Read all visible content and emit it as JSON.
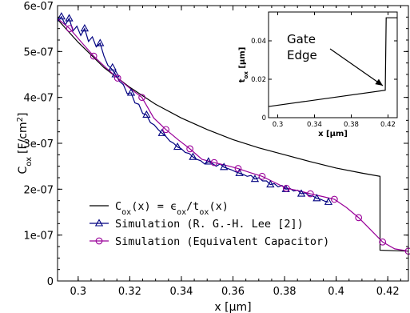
{
  "chart_data": [
    {
      "type": "line",
      "xlabel": "x",
      "xlabel_unit": "[μm]",
      "ylabel": "C",
      "ylabel_sub": "ox",
      "ylabel_unit": "[F/cm",
      "ylabel_unit_sup": "2",
      "ylabel_unit_end": "]",
      "xlim": [
        0.292,
        0.428
      ],
      "ylim": [
        0,
        6e-07
      ],
      "x_ticks": [
        0.3,
        0.32,
        0.34,
        0.36,
        0.38,
        0.4,
        0.42
      ],
      "x_tick_labels": [
        "0.3",
        "0.32",
        "0.34",
        "0.36",
        "0.38",
        "0.4",
        "0.42"
      ],
      "y_ticks": [
        0,
        1e-07,
        2e-07,
        3e-07,
        4e-07,
        5e-07,
        6e-07
      ],
      "y_tick_labels": [
        "0",
        "1e-07",
        "2e-07",
        "3e-07",
        "4e-07",
        "5e-07",
        "6e-07"
      ],
      "grid": false,
      "legend_position": "bottom-left",
      "series": [
        {
          "name": "C_ox(x) = ε_ox/t_ox(x)",
          "legend_parts": [
            "C",
            "ox",
            "(x) = ϵ",
            "ox",
            "/t",
            "ox",
            "(x)"
          ],
          "color": "#000000",
          "marker": "none",
          "x": [
            0.292,
            0.3,
            0.31,
            0.32,
            0.33,
            0.34,
            0.35,
            0.36,
            0.37,
            0.38,
            0.39,
            0.4,
            0.41,
            0.417,
            0.417,
            0.428
          ],
          "y": [
            5.7e-07,
            5.2e-07,
            4.65e-07,
            4.22e-07,
            3.85e-07,
            3.55e-07,
            3.3e-07,
            3.08e-07,
            2.9e-07,
            2.75e-07,
            2.6e-07,
            2.46e-07,
            2.35e-07,
            2.28e-07,
            6.7e-08,
            6.5e-08
          ]
        },
        {
          "name": "Simulation (R. G.-H. Lee [2])",
          "color": "#000080",
          "marker": "triangle",
          "x": [
            0.292,
            0.2935,
            0.295,
            0.2965,
            0.298,
            0.2995,
            0.301,
            0.3025,
            0.304,
            0.3055,
            0.307,
            0.3085,
            0.31,
            0.3115,
            0.313,
            0.3145,
            0.316,
            0.3175,
            0.319,
            0.3205,
            0.322,
            0.3235,
            0.325,
            0.3265,
            0.328,
            0.3295,
            0.331,
            0.3325,
            0.334,
            0.3355,
            0.337,
            0.3385,
            0.34,
            0.3415,
            0.343,
            0.3445,
            0.346,
            0.3475,
            0.349,
            0.3505,
            0.352,
            0.3535,
            0.355,
            0.3565,
            0.358,
            0.3595,
            0.361,
            0.3625,
            0.364,
            0.3655,
            0.367,
            0.3685,
            0.37,
            0.3715,
            0.373,
            0.3745,
            0.376,
            0.3775,
            0.379,
            0.3805,
            0.382,
            0.3835,
            0.385,
            0.3865,
            0.388,
            0.3895,
            0.391,
            0.3925,
            0.394,
            0.3955,
            0.397
          ],
          "y": [
            5.65e-07,
            5.76e-07,
            5.58e-07,
            5.72e-07,
            5.45e-07,
            5.55e-07,
            5.35e-07,
            5.5e-07,
            5.22e-07,
            5.32e-07,
            5.1e-07,
            5.18e-07,
            4.9e-07,
            4.7e-07,
            4.62e-07,
            4.5e-07,
            4.35e-07,
            4.28e-07,
            4.08e-07,
            4.1e-07,
            3.88e-07,
            3.85e-07,
            3.65e-07,
            3.62e-07,
            3.45e-07,
            3.4e-07,
            3.3e-07,
            3.22e-07,
            3.15e-07,
            3.05e-07,
            3e-07,
            2.92e-07,
            2.88e-07,
            2.8e-07,
            2.78e-07,
            2.7e-07,
            2.65e-07,
            2.62e-07,
            2.55e-07,
            2.6e-07,
            2.56e-07,
            2.5e-07,
            2.55e-07,
            2.48e-07,
            2.45e-07,
            2.42e-07,
            2.38e-07,
            2.35e-07,
            2.32e-07,
            2.28e-07,
            2.3e-07,
            2.22e-07,
            2.25e-07,
            2.18e-07,
            2.18e-07,
            2.1e-07,
            2.12e-07,
            2.05e-07,
            2.08e-07,
            2e-07,
            2.02e-07,
            1.96e-07,
            1.98e-07,
            1.9e-07,
            1.92e-07,
            1.86e-07,
            1.85e-07,
            1.8e-07,
            1.78e-07,
            1.74e-07,
            1.72e-07
          ],
          "marker_indices": [
            1,
            3,
            7,
            11,
            15,
            19,
            23,
            27,
            31,
            35,
            39,
            43,
            47,
            51,
            55,
            59,
            63,
            67,
            70
          ],
          "extra_markers": [
            {
              "x": 0.3133,
              "y": 4.65e-07
            }
          ]
        },
        {
          "name": "Simulation (Equivalent Capacitor)",
          "color": "#990099",
          "marker": "circle",
          "x": [
            0.292,
            0.2967,
            0.3013,
            0.306,
            0.3107,
            0.3153,
            0.32,
            0.3247,
            0.3293,
            0.334,
            0.3387,
            0.3433,
            0.348,
            0.3527,
            0.3573,
            0.362,
            0.3667,
            0.3713,
            0.376,
            0.3807,
            0.3853,
            0.39,
            0.3947,
            0.3993,
            0.404,
            0.4087,
            0.4133,
            0.418,
            0.4227,
            0.428
          ],
          "y": [
            5.72e-07,
            5.5e-07,
            5.2e-07,
            4.9e-07,
            4.65e-07,
            4.42e-07,
            4.2e-07,
            4e-07,
            3.55e-07,
            3.3e-07,
            3.08e-07,
            2.88e-07,
            2.65e-07,
            2.58e-07,
            2.52e-07,
            2.45e-07,
            2.36e-07,
            2.28e-07,
            2.15e-07,
            2.02e-07,
            1.97e-07,
            1.9e-07,
            1.84e-07,
            1.78e-07,
            1.6e-07,
            1.38e-07,
            1.12e-07,
            8.5e-08,
            7e-08,
            6.5e-08
          ],
          "marker_indices": [
            1,
            3,
            5,
            7,
            9,
            11,
            13,
            15,
            17,
            19,
            21,
            23,
            25,
            27,
            29
          ]
        }
      ]
    },
    {
      "type": "line",
      "role": "inset",
      "xlabel": "x",
      "xlabel_unit": "[μm]",
      "ylabel": "t",
      "ylabel_sub": "ox",
      "ylabel_unit": "[μm]",
      "xlim": [
        0.29,
        0.43
      ],
      "ylim": [
        0,
        0.055
      ],
      "x_ticks": [
        0.3,
        0.34,
        0.38,
        0.42
      ],
      "x_tick_labels": [
        "0.3",
        "0.34",
        "0.38",
        "0.42"
      ],
      "y_ticks": [
        0,
        0.02,
        0.04
      ],
      "y_tick_labels": [
        "0",
        "0.02",
        "0.04"
      ],
      "annotation": {
        "text_lines": [
          "Gate",
          "Edge"
        ],
        "arrow_to_x": 0.417,
        "arrow_to_y": 0.015
      },
      "series": [
        {
          "name": "t_ox",
          "color": "#000000",
          "x": [
            0.29,
            0.417,
            0.418,
            0.43
          ],
          "y": [
            0.0058,
            0.0143,
            0.052,
            0.052
          ]
        }
      ]
    }
  ]
}
